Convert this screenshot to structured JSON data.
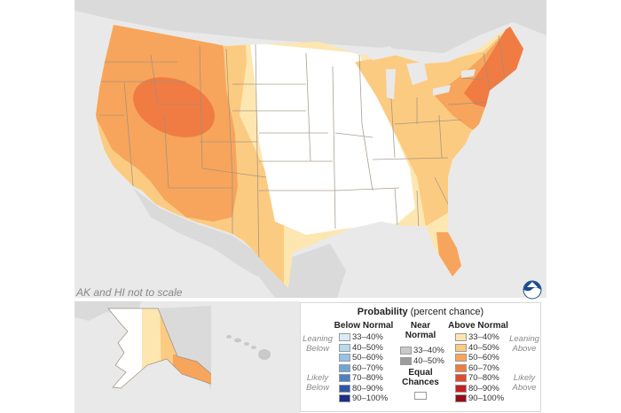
{
  "map": {
    "note": "AK and HI not to scale",
    "colors": {
      "background": "#e9e9e9",
      "equal_chances": "#ffffff",
      "land_outside": "#d9d9d9",
      "above_33_40": "#fde6b0",
      "above_40_50": "#fbcb82",
      "above_50_60": "#f7a55c",
      "above_60_70": "#f07c43",
      "state_border": "#9b8f80"
    }
  },
  "legend": {
    "title_bold": "Probability",
    "title_rest": "(percent chance)",
    "below_normal": {
      "heading": "Below Normal",
      "items": [
        {
          "label": "33–40%",
          "color": "#d6edf8"
        },
        {
          "label": "40–50%",
          "color": "#b5dcf0"
        },
        {
          "label": "50–60%",
          "color": "#93c4e5"
        },
        {
          "label": "60–70%",
          "color": "#6ea7d6"
        },
        {
          "label": "70–80%",
          "color": "#4b80c2"
        },
        {
          "label": "80–90%",
          "color": "#2f55a8"
        },
        {
          "label": "90–100%",
          "color": "#1c2e86"
        }
      ],
      "side_top": [
        "Leaning",
        "Below"
      ],
      "side_bottom": [
        "Likely",
        "Below"
      ]
    },
    "near_normal": {
      "heading": [
        "Near",
        "Normal"
      ],
      "items": [
        {
          "label": "33–40%",
          "color": "#c9c9c9"
        },
        {
          "label": "40–50%",
          "color": "#9d9d9d"
        }
      ]
    },
    "equal_chances": {
      "heading": [
        "Equal",
        "Chances"
      ],
      "color": "#ffffff"
    },
    "above_normal": {
      "heading": "Above Normal",
      "items": [
        {
          "label": "33–40%",
          "color": "#fde6b0"
        },
        {
          "label": "40–50%",
          "color": "#fbcb82"
        },
        {
          "label": "50–60%",
          "color": "#f7a55c"
        },
        {
          "label": "60–70%",
          "color": "#f07c43"
        },
        {
          "label": "70–80%",
          "color": "#e24a2d"
        },
        {
          "label": "80–90%",
          "color": "#c8211f"
        },
        {
          "label": "90–100%",
          "color": "#980d15"
        }
      ],
      "side_top": [
        "Leaning",
        "Above"
      ],
      "side_bottom": [
        "Likely",
        "Above"
      ]
    }
  },
  "logo": {
    "icon": "noaa-logo-icon"
  }
}
